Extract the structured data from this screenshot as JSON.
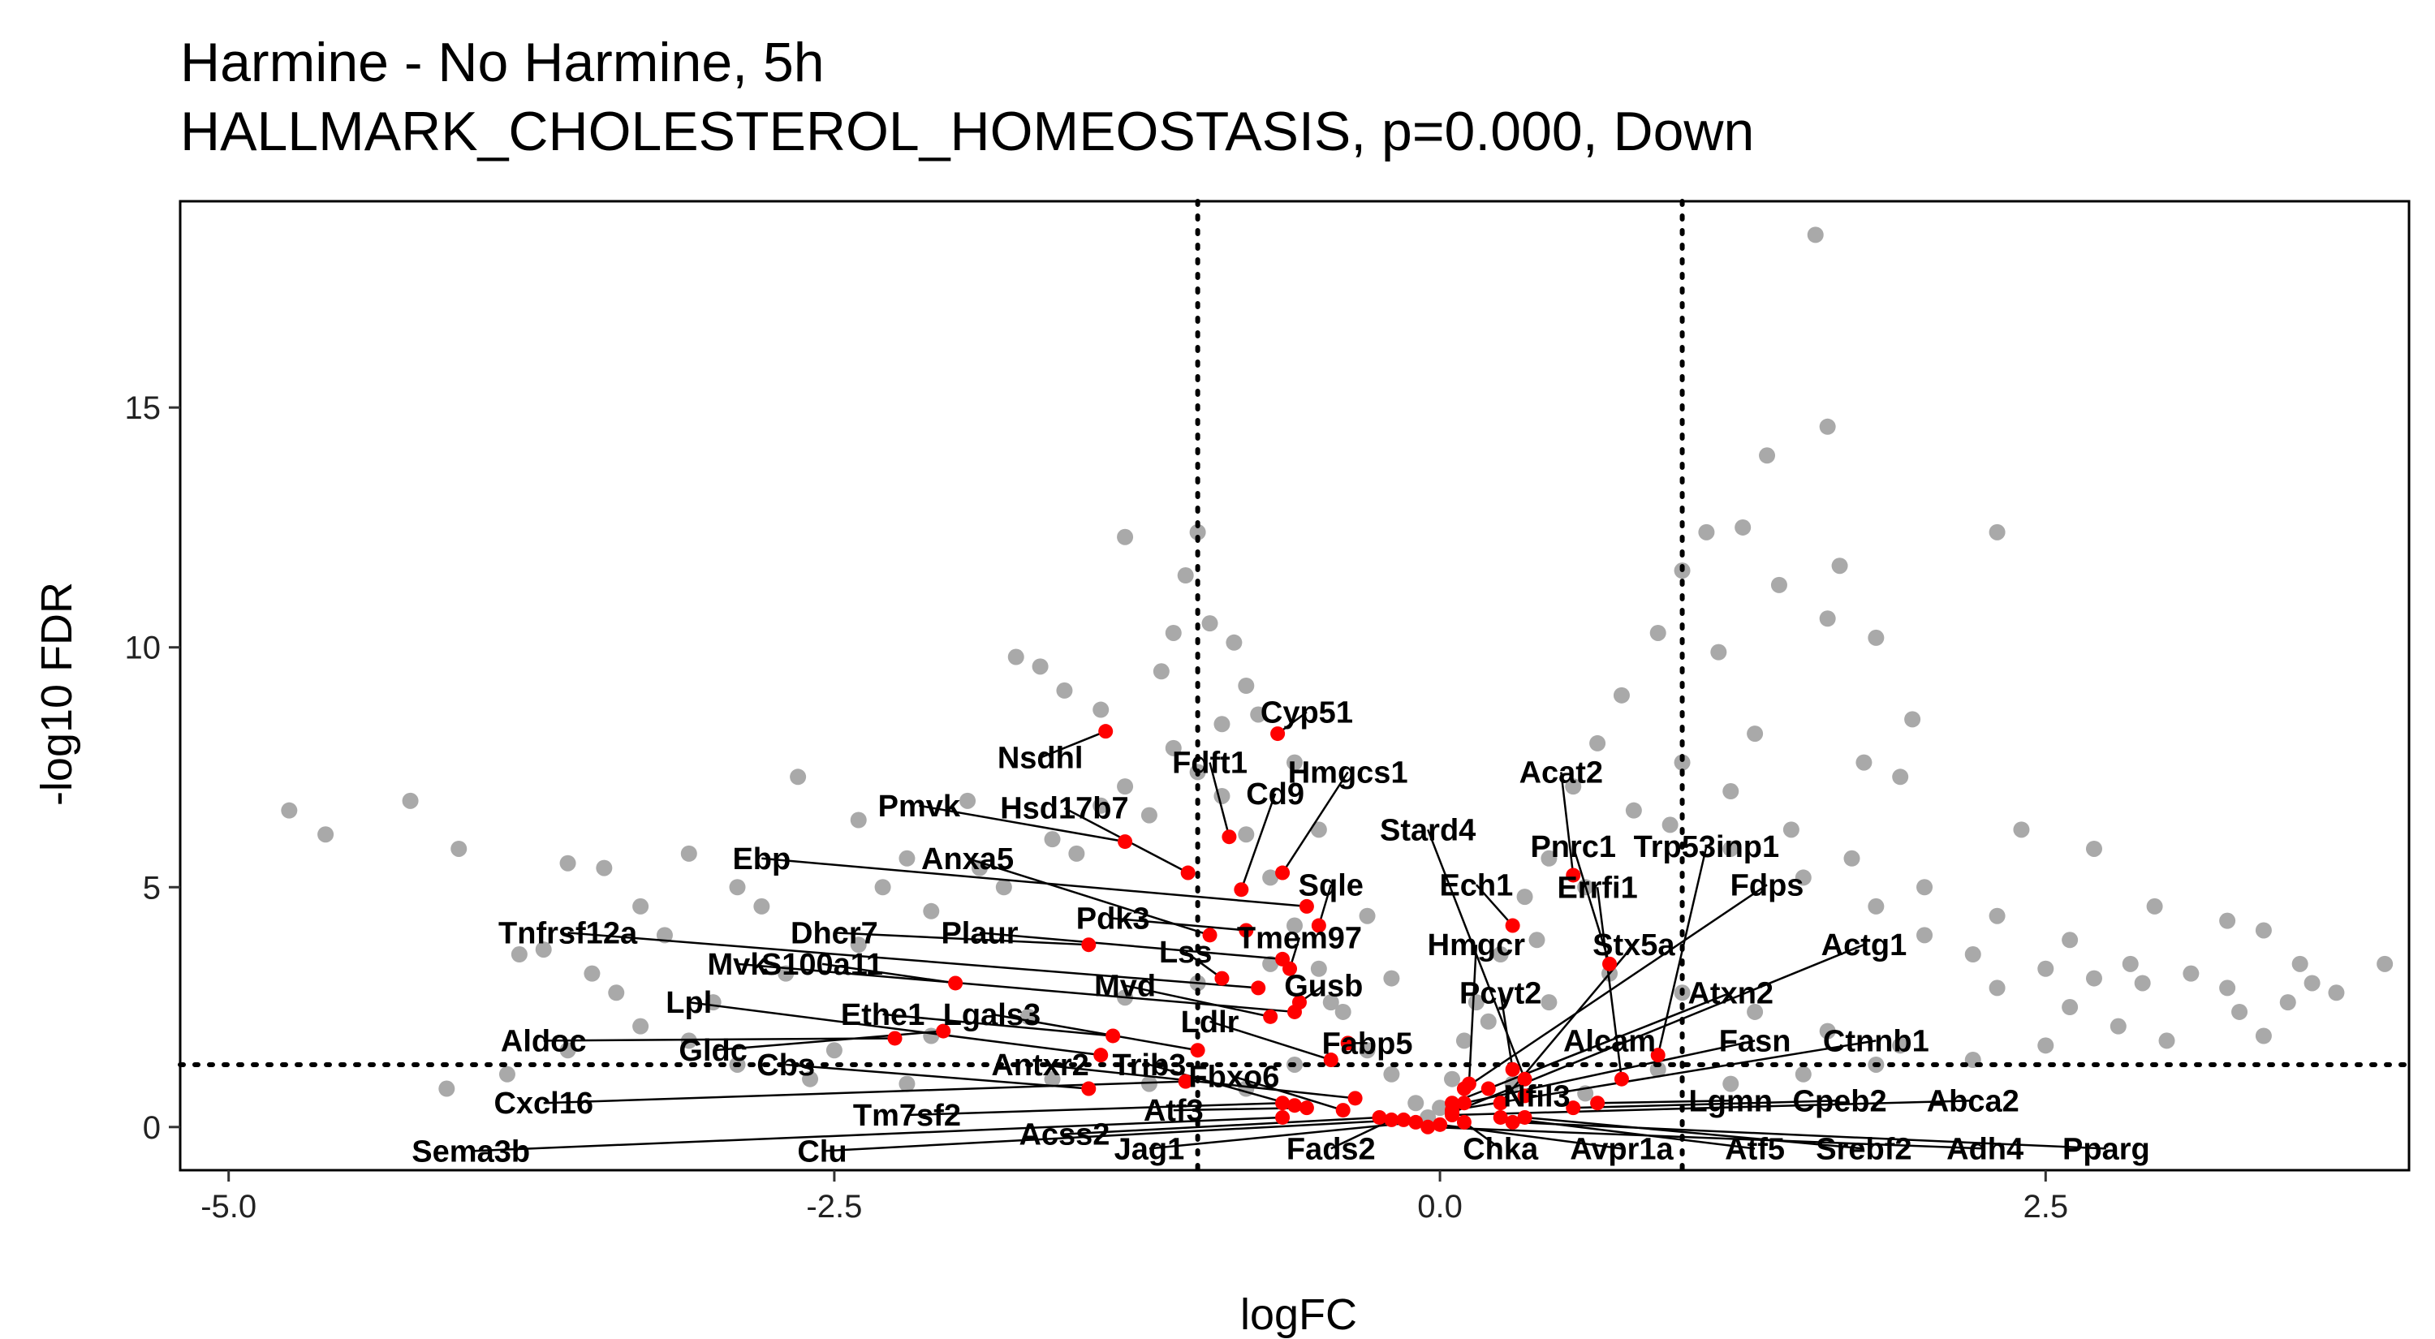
{
  "chart_data": {
    "type": "scatter",
    "title": "Harmine - No Harmine, 5h",
    "subtitle": "HALLMARK_CHOLESTEROL_HOMEOSTASIS, p=0.000, Down",
    "xlabel": "logFC",
    "ylabel": "-log10 FDR",
    "xlim": [
      -5.2,
      4.0
    ],
    "ylim": [
      -0.9,
      19.3
    ],
    "x_ticks": [
      -5.0,
      -2.5,
      0.0,
      2.5
    ],
    "x_tick_labels": [
      "-5.0",
      "-2.5",
      "0.0",
      "2.5"
    ],
    "y_ticks": [
      0,
      5,
      10,
      15
    ],
    "y_tick_labels": [
      "0",
      "5",
      "10",
      "15"
    ],
    "grid": false,
    "legend": "none",
    "colors": {
      "background_genes": "#a9a9a9",
      "highlight_genes": "#ff0000",
      "lines": "#000000"
    },
    "thresholds": {
      "logFC": [
        -1.0,
        1.0
      ],
      "neg_log10_fdr": 1.3
    },
    "background_points": [
      [
        -4.75,
        6.6
      ],
      [
        -4.6,
        6.1
      ],
      [
        -4.25,
        6.8
      ],
      [
        -4.05,
        5.8
      ],
      [
        -3.8,
        3.6
      ],
      [
        -3.6,
        5.5
      ],
      [
        -3.45,
        5.4
      ],
      [
        -3.3,
        4.6
      ],
      [
        -3.1,
        5.7
      ],
      [
        -2.9,
        5.0
      ],
      [
        -2.65,
        7.3
      ],
      [
        -2.4,
        6.4
      ],
      [
        -2.2,
        5.6
      ],
      [
        -1.95,
        6.8
      ],
      [
        -1.75,
        9.8
      ],
      [
        -1.65,
        9.6
      ],
      [
        -1.55,
        9.1
      ],
      [
        -1.4,
        8.7
      ],
      [
        -1.3,
        7.1
      ],
      [
        -1.15,
        9.5
      ],
      [
        -1.1,
        10.3
      ],
      [
        -1.05,
        11.5
      ],
      [
        -1.3,
        12.3
      ],
      [
        -1.0,
        12.4
      ],
      [
        -0.85,
        10.1
      ],
      [
        -0.8,
        9.2
      ],
      [
        -0.75,
        8.6
      ],
      [
        -0.95,
        10.5
      ],
      [
        1.55,
        18.6
      ],
      [
        1.6,
        14.6
      ],
      [
        1.35,
        14.0
      ],
      [
        2.3,
        12.4
      ],
      [
        1.1,
        12.4
      ],
      [
        1.25,
        12.5
      ],
      [
        1.0,
        11.6
      ],
      [
        1.4,
        11.3
      ],
      [
        1.65,
        11.7
      ],
      [
        0.9,
        10.3
      ],
      [
        1.15,
        9.9
      ],
      [
        1.6,
        10.6
      ],
      [
        1.8,
        10.2
      ],
      [
        1.95,
        8.5
      ],
      [
        0.75,
        9.0
      ],
      [
        0.65,
        8.0
      ],
      [
        0.55,
        7.1
      ],
      [
        1.3,
        8.2
      ],
      [
        1.75,
        7.6
      ],
      [
        1.9,
        7.3
      ],
      [
        2.4,
        6.2
      ],
      [
        2.7,
        5.8
      ],
      [
        2.95,
        4.6
      ],
      [
        3.25,
        4.3
      ],
      [
        3.4,
        4.1
      ],
      [
        3.55,
        3.4
      ],
      [
        3.1,
        3.2
      ],
      [
        3.25,
        2.9
      ],
      [
        2.9,
        3.0
      ],
      [
        2.7,
        3.1
      ],
      [
        2.5,
        3.3
      ],
      [
        2.2,
        3.6
      ],
      [
        2.0,
        4.0
      ],
      [
        1.8,
        4.6
      ],
      [
        1.5,
        5.2
      ],
      [
        1.2,
        5.8
      ],
      [
        0.95,
        6.3
      ],
      [
        0.45,
        5.6
      ],
      [
        0.35,
        4.8
      ],
      [
        0.25,
        3.6
      ],
      [
        0.15,
        2.6
      ],
      [
        0.1,
        1.8
      ],
      [
        0.05,
        1.0
      ],
      [
        0.0,
        0.4
      ],
      [
        -0.05,
        0.2
      ],
      [
        -0.1,
        0.5
      ],
      [
        -0.2,
        1.1
      ],
      [
        -0.3,
        1.6
      ],
      [
        -0.4,
        2.4
      ],
      [
        -0.5,
        3.3
      ],
      [
        -0.6,
        4.2
      ],
      [
        -0.7,
        5.2
      ],
      [
        -0.8,
        6.1
      ],
      [
        -0.9,
        6.9
      ],
      [
        -1.0,
        7.4
      ],
      [
        -1.2,
        6.5
      ],
      [
        -1.5,
        5.7
      ],
      [
        -1.8,
        5.0
      ],
      [
        -2.1,
        4.5
      ],
      [
        -2.4,
        3.8
      ],
      [
        -2.7,
        3.2
      ],
      [
        -3.0,
        2.6
      ],
      [
        -3.3,
        2.1
      ],
      [
        -3.6,
        1.6
      ],
      [
        -3.85,
        1.1
      ],
      [
        -4.1,
        0.8
      ],
      [
        -2.9,
        1.3
      ],
      [
        -2.5,
        1.6
      ],
      [
        -2.1,
        1.9
      ],
      [
        -1.7,
        2.3
      ],
      [
        -1.3,
        2.7
      ],
      [
        -1.0,
        3.0
      ],
      [
        -0.7,
        3.4
      ],
      [
        -0.45,
        2.6
      ],
      [
        0.45,
        2.6
      ],
      [
        0.7,
        3.2
      ],
      [
        1.0,
        2.8
      ],
      [
        1.3,
        2.4
      ],
      [
        1.6,
        2.0
      ],
      [
        1.9,
        1.7
      ],
      [
        2.2,
        1.4
      ],
      [
        2.5,
        1.7
      ],
      [
        2.8,
        2.1
      ],
      [
        3.0,
        1.8
      ],
      [
        3.3,
        2.4
      ],
      [
        3.5,
        2.6
      ],
      [
        3.7,
        2.8
      ],
      [
        3.9,
        3.4
      ],
      [
        3.6,
        3.0
      ],
      [
        3.4,
        1.9
      ],
      [
        2.6,
        2.5
      ],
      [
        2.3,
        2.9
      ],
      [
        -1.6,
        1.0
      ],
      [
        -1.2,
        0.9
      ],
      [
        -0.8,
        0.8
      ],
      [
        -0.6,
        1.3
      ],
      [
        0.3,
        0.9
      ],
      [
        0.6,
        0.7
      ],
      [
        0.9,
        1.2
      ],
      [
        1.2,
        0.9
      ],
      [
        1.5,
        1.1
      ],
      [
        1.8,
        1.3
      ],
      [
        -2.2,
        0.9
      ],
      [
        -2.6,
        1.0
      ],
      [
        -3.1,
        1.8
      ],
      [
        -3.4,
        2.8
      ],
      [
        -3.7,
        3.7
      ],
      [
        -3.5,
        3.2
      ],
      [
        -3.2,
        4.0
      ],
      [
        -2.8,
        4.6
      ],
      [
        -2.3,
        5.0
      ],
      [
        -1.9,
        5.4
      ],
      [
        -1.6,
        6.0
      ],
      [
        -1.4,
        6.7
      ],
      [
        -1.1,
        7.9
      ],
      [
        -0.9,
        8.4
      ],
      [
        -0.6,
        7.6
      ],
      [
        -0.5,
        6.2
      ],
      [
        -0.3,
        4.4
      ],
      [
        -0.2,
        3.1
      ],
      [
        0.2,
        2.2
      ],
      [
        0.4,
        3.9
      ],
      [
        0.6,
        5.0
      ],
      [
        0.8,
        6.6
      ],
      [
        1.0,
        7.6
      ],
      [
        1.2,
        7.0
      ],
      [
        1.45,
        6.2
      ],
      [
        1.7,
        5.6
      ],
      [
        2.0,
        5.0
      ],
      [
        2.3,
        4.4
      ],
      [
        2.6,
        3.9
      ],
      [
        2.85,
        3.4
      ]
    ],
    "highlight_points": [
      {
        "gene": "Cyp51",
        "x": -0.67,
        "y": 8.2,
        "lx": -0.55,
        "ly": 8.65
      },
      {
        "gene": "Nsdhl",
        "x": -1.38,
        "y": 8.25,
        "lx": -1.65,
        "ly": 7.7
      },
      {
        "gene": "Fdft1",
        "x": -0.87,
        "y": 6.05,
        "lx": -0.95,
        "ly": 7.6
      },
      {
        "gene": "Hmgcs1",
        "x": -0.65,
        "y": 5.3,
        "lx": -0.38,
        "ly": 7.4
      },
      {
        "gene": "Pmvk",
        "x": -1.3,
        "y": 5.95,
        "lx": -2.15,
        "ly": 6.7
      },
      {
        "gene": "Hsd17b7",
        "x": -1.04,
        "y": 5.3,
        "lx": -1.55,
        "ly": 6.65
      },
      {
        "gene": "Cd9",
        "x": -0.82,
        "y": 4.95,
        "lx": -0.68,
        "ly": 6.95
      },
      {
        "gene": "Acat2",
        "x": 0.55,
        "y": 5.25,
        "lx": 0.5,
        "ly": 7.4
      },
      {
        "gene": "Stard4",
        "x": 0.35,
        "y": 1.0,
        "lx": -0.05,
        "ly": 6.2
      },
      {
        "gene": "Pnrc1",
        "x": 0.7,
        "y": 3.4,
        "lx": 0.55,
        "ly": 5.85
      },
      {
        "gene": "Trp53inp1",
        "x": 0.9,
        "y": 1.5,
        "lx": 1.1,
        "ly": 5.85
      },
      {
        "gene": "Ebp",
        "x": -0.55,
        "y": 4.6,
        "lx": -2.8,
        "ly": 5.6
      },
      {
        "gene": "Anxa5",
        "x": -0.95,
        "y": 4.0,
        "lx": -1.95,
        "ly": 5.6
      },
      {
        "gene": "Sqle",
        "x": -0.5,
        "y": 4.2,
        "lx": -0.45,
        "ly": 5.05
      },
      {
        "gene": "Ech1",
        "x": 0.3,
        "y": 4.2,
        "lx": 0.15,
        "ly": 5.05
      },
      {
        "gene": "Errfi1",
        "x": 0.75,
        "y": 1.0,
        "lx": 0.65,
        "ly": 5.0
      },
      {
        "gene": "Fdps",
        "x": 0.1,
        "y": 0.8,
        "lx": 1.35,
        "ly": 5.05
      },
      {
        "gene": "Tnfrsf12a",
        "x": -0.75,
        "y": 2.9,
        "lx": -3.6,
        "ly": 4.05
      },
      {
        "gene": "Dhcr7",
        "x": -1.45,
        "y": 3.8,
        "lx": -2.5,
        "ly": 4.05
      },
      {
        "gene": "Plaur",
        "x": -0.65,
        "y": 3.5,
        "lx": -1.9,
        "ly": 4.05
      },
      {
        "gene": "Pdk3",
        "x": -0.8,
        "y": 4.1,
        "lx": -1.35,
        "ly": 4.35
      },
      {
        "gene": "Tmem97",
        "x": -0.62,
        "y": 3.3,
        "lx": -0.58,
        "ly": 3.95
      },
      {
        "gene": "Hmgcr",
        "x": 0.12,
        "y": 0.9,
        "lx": 0.15,
        "ly": 3.8
      },
      {
        "gene": "Stx5a",
        "x": 0.25,
        "y": 0.5,
        "lx": 0.8,
        "ly": 3.8
      },
      {
        "gene": "Actg1",
        "x": 0.05,
        "y": 0.3,
        "lx": 1.75,
        "ly": 3.8
      },
      {
        "gene": "Lss",
        "x": -0.9,
        "y": 3.1,
        "lx": -1.05,
        "ly": 3.65
      },
      {
        "gene": "Mvk",
        "x": -0.6,
        "y": 2.4,
        "lx": -2.9,
        "ly": 3.4
      },
      {
        "gene": "S100a11",
        "x": -2.0,
        "y": 3.0,
        "lx": -2.55,
        "ly": 3.4
      },
      {
        "gene": "Gusb",
        "x": -0.58,
        "y": 2.6,
        "lx": -0.48,
        "ly": 2.95
      },
      {
        "gene": "Mvd",
        "x": -0.7,
        "y": 2.3,
        "lx": -1.3,
        "ly": 2.95
      },
      {
        "gene": "Pcyt2",
        "x": 0.3,
        "y": 1.2,
        "lx": 0.25,
        "ly": 2.8
      },
      {
        "gene": "Atxn2",
        "x": 0.05,
        "y": 0.5,
        "lx": 1.2,
        "ly": 2.8
      },
      {
        "gene": "Lpl",
        "x": -1.4,
        "y": 1.5,
        "lx": -3.1,
        "ly": 2.6
      },
      {
        "gene": "Ethe1",
        "x": -1.35,
        "y": 1.9,
        "lx": -2.3,
        "ly": 2.35
      },
      {
        "gene": "Lgals3",
        "x": -1.0,
        "y": 1.6,
        "lx": -1.85,
        "ly": 2.35
      },
      {
        "gene": "Ldlr",
        "x": -0.45,
        "y": 1.4,
        "lx": -0.95,
        "ly": 2.2
      },
      {
        "gene": "Fabp5",
        "x": -0.38,
        "y": 1.75,
        "lx": -0.3,
        "ly": 1.75
      },
      {
        "gene": "Alcam",
        "x": 0.2,
        "y": 0.8,
        "lx": 0.7,
        "ly": 1.8
      },
      {
        "gene": "Fasn",
        "x": 0.1,
        "y": 0.5,
        "lx": 1.3,
        "ly": 1.8
      },
      {
        "gene": "Ctnnb1",
        "x": 0.05,
        "y": 0.35,
        "lx": 1.8,
        "ly": 1.8
      },
      {
        "gene": "Aldoc",
        "x": -2.25,
        "y": 1.85,
        "lx": -3.7,
        "ly": 1.8
      },
      {
        "gene": "Gldc",
        "x": -2.05,
        "y": 2.0,
        "lx": -3.0,
        "ly": 1.6
      },
      {
        "gene": "Cbs",
        "x": -1.45,
        "y": 0.8,
        "lx": -2.7,
        "ly": 1.3
      },
      {
        "gene": "Antxr2",
        "x": -0.35,
        "y": 0.6,
        "lx": -1.65,
        "ly": 1.3
      },
      {
        "gene": "Trib3",
        "x": -0.6,
        "y": 0.45,
        "lx": -1.2,
        "ly": 1.3
      },
      {
        "gene": "Fbxo6",
        "x": -0.4,
        "y": 0.35,
        "lx": -0.85,
        "ly": 1.05
      },
      {
        "gene": "Nfil3",
        "x": 0.35,
        "y": 0.65,
        "lx": 0.4,
        "ly": 0.65
      },
      {
        "gene": "Lgmn",
        "x": 0.65,
        "y": 0.5,
        "lx": 1.2,
        "ly": 0.55
      },
      {
        "gene": "Cpeb2",
        "x": 0.55,
        "y": 0.4,
        "lx": 1.65,
        "ly": 0.55
      },
      {
        "gene": "Abca2",
        "x": 0.05,
        "y": 0.25,
        "lx": 2.2,
        "ly": 0.55
      },
      {
        "gene": "Cxcl16",
        "x": -1.05,
        "y": 0.95,
        "lx": -3.7,
        "ly": 0.5
      },
      {
        "gene": "Tm7sf2",
        "x": -0.65,
        "y": 0.5,
        "lx": -2.2,
        "ly": 0.25
      },
      {
        "gene": "Atf3",
        "x": -0.55,
        "y": 0.4,
        "lx": -1.1,
        "ly": 0.35
      },
      {
        "gene": "Acss2",
        "x": -0.25,
        "y": 0.2,
        "lx": -1.55,
        "ly": -0.15
      },
      {
        "gene": "Sema3b",
        "x": -0.65,
        "y": 0.2,
        "lx": -4.0,
        "ly": -0.5
      },
      {
        "gene": "Clu",
        "x": -0.15,
        "y": 0.15,
        "lx": -2.55,
        "ly": -0.5
      },
      {
        "gene": "Jag1",
        "x": -0.1,
        "y": 0.1,
        "lx": -1.2,
        "ly": -0.45
      },
      {
        "gene": "Fads2",
        "x": -0.2,
        "y": 0.15,
        "lx": -0.45,
        "ly": -0.45
      },
      {
        "gene": "Chka",
        "x": 0.1,
        "y": 0.1,
        "lx": 0.25,
        "ly": -0.45
      },
      {
        "gene": "Avpr1a",
        "x": 0.0,
        "y": 0.05,
        "lx": 0.75,
        "ly": -0.45
      },
      {
        "gene": "Atf5",
        "x": 0.25,
        "y": 0.2,
        "lx": 1.3,
        "ly": -0.45
      },
      {
        "gene": "Srebf2",
        "x": 0.35,
        "y": 0.2,
        "lx": 1.75,
        "ly": -0.45
      },
      {
        "gene": "Adh4",
        "x": -0.05,
        "y": 0.0,
        "lx": 2.25,
        "ly": -0.45
      },
      {
        "gene": "Pparg",
        "x": 0.3,
        "y": 0.1,
        "lx": 2.75,
        "ly": -0.45
      }
    ]
  }
}
